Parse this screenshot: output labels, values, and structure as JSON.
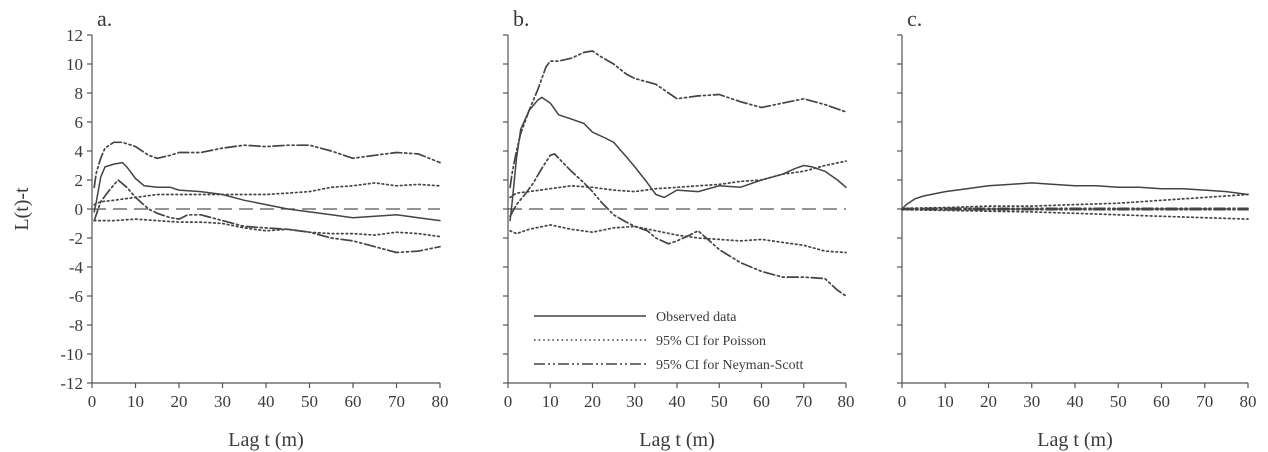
{
  "figure": {
    "ylabel": "L(t)-t",
    "legend": {
      "placement": "panel b, lower-left",
      "items": [
        {
          "label": "Observed data",
          "style": "solid"
        },
        {
          "label": "95% CI for Poisson",
          "style": "dotted"
        },
        {
          "label": "95% CI for Neyman-Scott",
          "style": "dash-dot-dot"
        }
      ]
    }
  },
  "chart_data": [
    {
      "type": "line",
      "panel_label": "a.",
      "xlabel": "Lag t (m)",
      "ylabel": "L(t)-t",
      "xlim": [
        0,
        80
      ],
      "ylim": [
        -12,
        12
      ],
      "xticks": [
        0,
        10,
        20,
        30,
        40,
        50,
        60,
        70,
        80
      ],
      "yticks": [
        -12,
        -10,
        -8,
        -6,
        -4,
        -2,
        0,
        2,
        4,
        6,
        8,
        10,
        12
      ],
      "zero_line": true,
      "series": [
        {
          "name": "Observed data",
          "style": "solid",
          "color": "#444444",
          "x": [
            0.5,
            1,
            2,
            3,
            5,
            7,
            8,
            10,
            12,
            15,
            18,
            20,
            25,
            30,
            35,
            40,
            45,
            50,
            55,
            60,
            65,
            70,
            75,
            80
          ],
          "y": [
            -0.2,
            0.5,
            2.2,
            2.9,
            3.1,
            3.2,
            2.9,
            2.1,
            1.6,
            1.5,
            1.5,
            1.3,
            1.2,
            1.0,
            0.6,
            0.3,
            0.0,
            -0.2,
            -0.4,
            -0.6,
            -0.5,
            -0.4,
            -0.6,
            -0.8
          ]
        },
        {
          "name": "95% CI for Poisson upper",
          "style": "dotted",
          "color": "#444444",
          "x": [
            0.5,
            2,
            5,
            10,
            15,
            20,
            25,
            30,
            35,
            40,
            45,
            50,
            55,
            60,
            65,
            70,
            75,
            80
          ],
          "y": [
            0.3,
            0.5,
            0.6,
            0.8,
            1.0,
            1.0,
            1.0,
            1.0,
            1.0,
            1.0,
            1.1,
            1.2,
            1.5,
            1.6,
            1.8,
            1.6,
            1.7,
            1.6
          ]
        },
        {
          "name": "95% CI for Poisson lower",
          "style": "dotted",
          "color": "#444444",
          "x": [
            0.5,
            2,
            5,
            10,
            15,
            20,
            25,
            30,
            35,
            40,
            45,
            50,
            55,
            60,
            65,
            70,
            75,
            80
          ],
          "y": [
            -0.8,
            -0.8,
            -0.8,
            -0.7,
            -0.8,
            -0.9,
            -0.9,
            -1.0,
            -1.3,
            -1.5,
            -1.4,
            -1.6,
            -1.7,
            -1.7,
            -1.8,
            -1.6,
            -1.7,
            -1.9
          ]
        },
        {
          "name": "95% CI for Neyman-Scott upper",
          "style": "dashdotdot",
          "color": "#444444",
          "x": [
            0.5,
            1,
            2,
            3,
            5,
            7,
            10,
            13,
            15,
            18,
            20,
            25,
            30,
            35,
            40,
            45,
            50,
            55,
            60,
            65,
            70,
            75,
            80
          ],
          "y": [
            1.5,
            2.5,
            3.5,
            4.2,
            4.6,
            4.6,
            4.3,
            3.7,
            3.5,
            3.7,
            3.9,
            3.9,
            4.2,
            4.4,
            4.3,
            4.4,
            4.4,
            4.0,
            3.5,
            3.7,
            3.9,
            3.8,
            3.2
          ]
        },
        {
          "name": "95% CI for Neyman-Scott lower",
          "style": "dashdotdot",
          "color": "#444444",
          "x": [
            0.5,
            2,
            4,
            6,
            8,
            10,
            13,
            15,
            18,
            20,
            22,
            25,
            30,
            35,
            40,
            45,
            50,
            55,
            60,
            65,
            70,
            75,
            80
          ],
          "y": [
            -0.8,
            0.5,
            1.3,
            2.0,
            1.5,
            0.8,
            0.0,
            -0.3,
            -0.6,
            -0.7,
            -0.4,
            -0.4,
            -0.8,
            -1.2,
            -1.3,
            -1.4,
            -1.6,
            -2.0,
            -2.2,
            -2.6,
            -3.0,
            -2.9,
            -2.6
          ]
        }
      ]
    },
    {
      "type": "line",
      "panel_label": "b.",
      "xlabel": "Lag t (m)",
      "xlim": [
        0,
        80
      ],
      "ylim": [
        -12,
        12
      ],
      "xticks": [
        0,
        10,
        20,
        30,
        40,
        50,
        60,
        70,
        80
      ],
      "zero_line": true,
      "series": [
        {
          "name": "Observed data",
          "style": "solid",
          "color": "#444444",
          "x": [
            0.5,
            1,
            2,
            3,
            5,
            7,
            8,
            10,
            12,
            15,
            18,
            20,
            23,
            25,
            28,
            30,
            33,
            35,
            37,
            40,
            45,
            50,
            55,
            60,
            65,
            68,
            70,
            72,
            75,
            78,
            80
          ],
          "y": [
            -0.8,
            0.5,
            3.5,
            5.5,
            6.8,
            7.5,
            7.7,
            7.3,
            6.5,
            6.2,
            5.9,
            5.3,
            4.9,
            4.6,
            3.6,
            2.9,
            1.8,
            1.0,
            0.8,
            1.3,
            1.2,
            1.6,
            1.5,
            2.0,
            2.4,
            2.8,
            3.0,
            2.9,
            2.6,
            2.0,
            1.5
          ]
        },
        {
          "name": "95% CI for Poisson upper",
          "style": "dotted",
          "color": "#444444",
          "x": [
            0.5,
            2,
            5,
            10,
            15,
            20,
            25,
            30,
            35,
            40,
            45,
            50,
            55,
            60,
            65,
            70,
            75,
            80
          ],
          "y": [
            0.8,
            1.1,
            1.2,
            1.4,
            1.6,
            1.5,
            1.3,
            1.2,
            1.4,
            1.5,
            1.6,
            1.7,
            1.9,
            2.0,
            2.4,
            2.6,
            3.0,
            3.3
          ]
        },
        {
          "name": "95% CI for Poisson lower",
          "style": "dotted",
          "color": "#444444",
          "x": [
            0.5,
            2,
            5,
            10,
            15,
            20,
            25,
            30,
            35,
            40,
            45,
            50,
            55,
            60,
            65,
            70,
            75,
            80
          ],
          "y": [
            -1.5,
            -1.7,
            -1.4,
            -1.1,
            -1.4,
            -1.6,
            -1.3,
            -1.2,
            -1.5,
            -1.8,
            -2.0,
            -2.1,
            -2.2,
            -2.1,
            -2.3,
            -2.5,
            -2.9,
            -3.0
          ]
        },
        {
          "name": "95% CI for Neyman-Scott upper",
          "style": "dashdotdot",
          "color": "#444444",
          "x": [
            0.5,
            1,
            2,
            3,
            5,
            7,
            9,
            10,
            12,
            15,
            18,
            20,
            22,
            25,
            28,
            30,
            35,
            40,
            45,
            50,
            55,
            60,
            65,
            70,
            75,
            80
          ],
          "y": [
            1.5,
            2.5,
            4.0,
            5.2,
            6.8,
            8.2,
            9.8,
            10.2,
            10.2,
            10.4,
            10.8,
            10.9,
            10.5,
            10.0,
            9.3,
            9.0,
            8.6,
            7.6,
            7.8,
            7.9,
            7.4,
            7.0,
            7.3,
            7.6,
            7.2,
            6.7
          ]
        },
        {
          "name": "95% CI for Neyman-Scott lower",
          "style": "dashdotdot",
          "color": "#444444",
          "x": [
            0.5,
            2,
            4,
            6,
            8,
            10,
            11,
            13,
            15,
            18,
            20,
            22,
            25,
            28,
            30,
            33,
            35,
            38,
            40,
            43,
            45,
            50,
            55,
            60,
            65,
            70,
            75,
            78,
            80
          ],
          "y": [
            -0.5,
            0.3,
            1.0,
            1.8,
            2.8,
            3.7,
            3.8,
            3.2,
            2.6,
            1.8,
            1.2,
            0.5,
            -0.4,
            -0.9,
            -1.2,
            -1.5,
            -2.0,
            -2.4,
            -2.2,
            -1.8,
            -1.5,
            -2.8,
            -3.7,
            -4.3,
            -4.7,
            -4.7,
            -4.8,
            -5.6,
            -6.0
          ]
        }
      ]
    },
    {
      "type": "line",
      "panel_label": "c.",
      "xlabel": "Lag t (m)",
      "xlim": [
        0,
        80
      ],
      "ylim": [
        -12,
        12
      ],
      "xticks": [
        0,
        10,
        20,
        30,
        40,
        50,
        60,
        70,
        80
      ],
      "zero_line": true,
      "series": [
        {
          "name": "Observed data",
          "style": "solid",
          "color": "#444444",
          "x": [
            0,
            1,
            3,
            5,
            10,
            15,
            20,
            25,
            30,
            35,
            40,
            45,
            50,
            55,
            60,
            65,
            70,
            75,
            80
          ],
          "y": [
            0.0,
            0.3,
            0.7,
            0.9,
            1.2,
            1.4,
            1.6,
            1.7,
            1.8,
            1.7,
            1.6,
            1.6,
            1.5,
            1.5,
            1.4,
            1.4,
            1.3,
            1.2,
            1.0
          ]
        },
        {
          "name": "95% CI for Poisson upper",
          "style": "dotted",
          "color": "#444444",
          "x": [
            0,
            10,
            20,
            30,
            40,
            50,
            60,
            70,
            80
          ],
          "y": [
            0.05,
            0.1,
            0.2,
            0.2,
            0.3,
            0.4,
            0.6,
            0.8,
            1.0
          ]
        },
        {
          "name": "95% CI for Poisson lower",
          "style": "dotted",
          "color": "#444444",
          "x": [
            0,
            10,
            20,
            30,
            40,
            50,
            60,
            70,
            80
          ],
          "y": [
            -0.05,
            -0.1,
            -0.15,
            -0.2,
            -0.3,
            -0.4,
            -0.5,
            -0.6,
            -0.7
          ]
        },
        {
          "name": "95% CI for Neyman-Scott upper",
          "style": "dashdotdot",
          "color": "#444444",
          "x": [
            0,
            10,
            20,
            30,
            40,
            50,
            60,
            70,
            80
          ],
          "y": [
            0.03,
            0.05,
            0.05,
            0.05,
            0.05,
            0.05,
            0.05,
            0.05,
            0.05
          ]
        },
        {
          "name": "95% CI for Neyman-Scott lower",
          "style": "dashdotdot",
          "color": "#444444",
          "x": [
            0,
            10,
            20,
            30,
            40,
            50,
            60,
            70,
            80
          ],
          "y": [
            -0.03,
            -0.05,
            -0.05,
            -0.05,
            -0.05,
            -0.05,
            -0.05,
            -0.05,
            -0.05
          ]
        }
      ]
    }
  ]
}
